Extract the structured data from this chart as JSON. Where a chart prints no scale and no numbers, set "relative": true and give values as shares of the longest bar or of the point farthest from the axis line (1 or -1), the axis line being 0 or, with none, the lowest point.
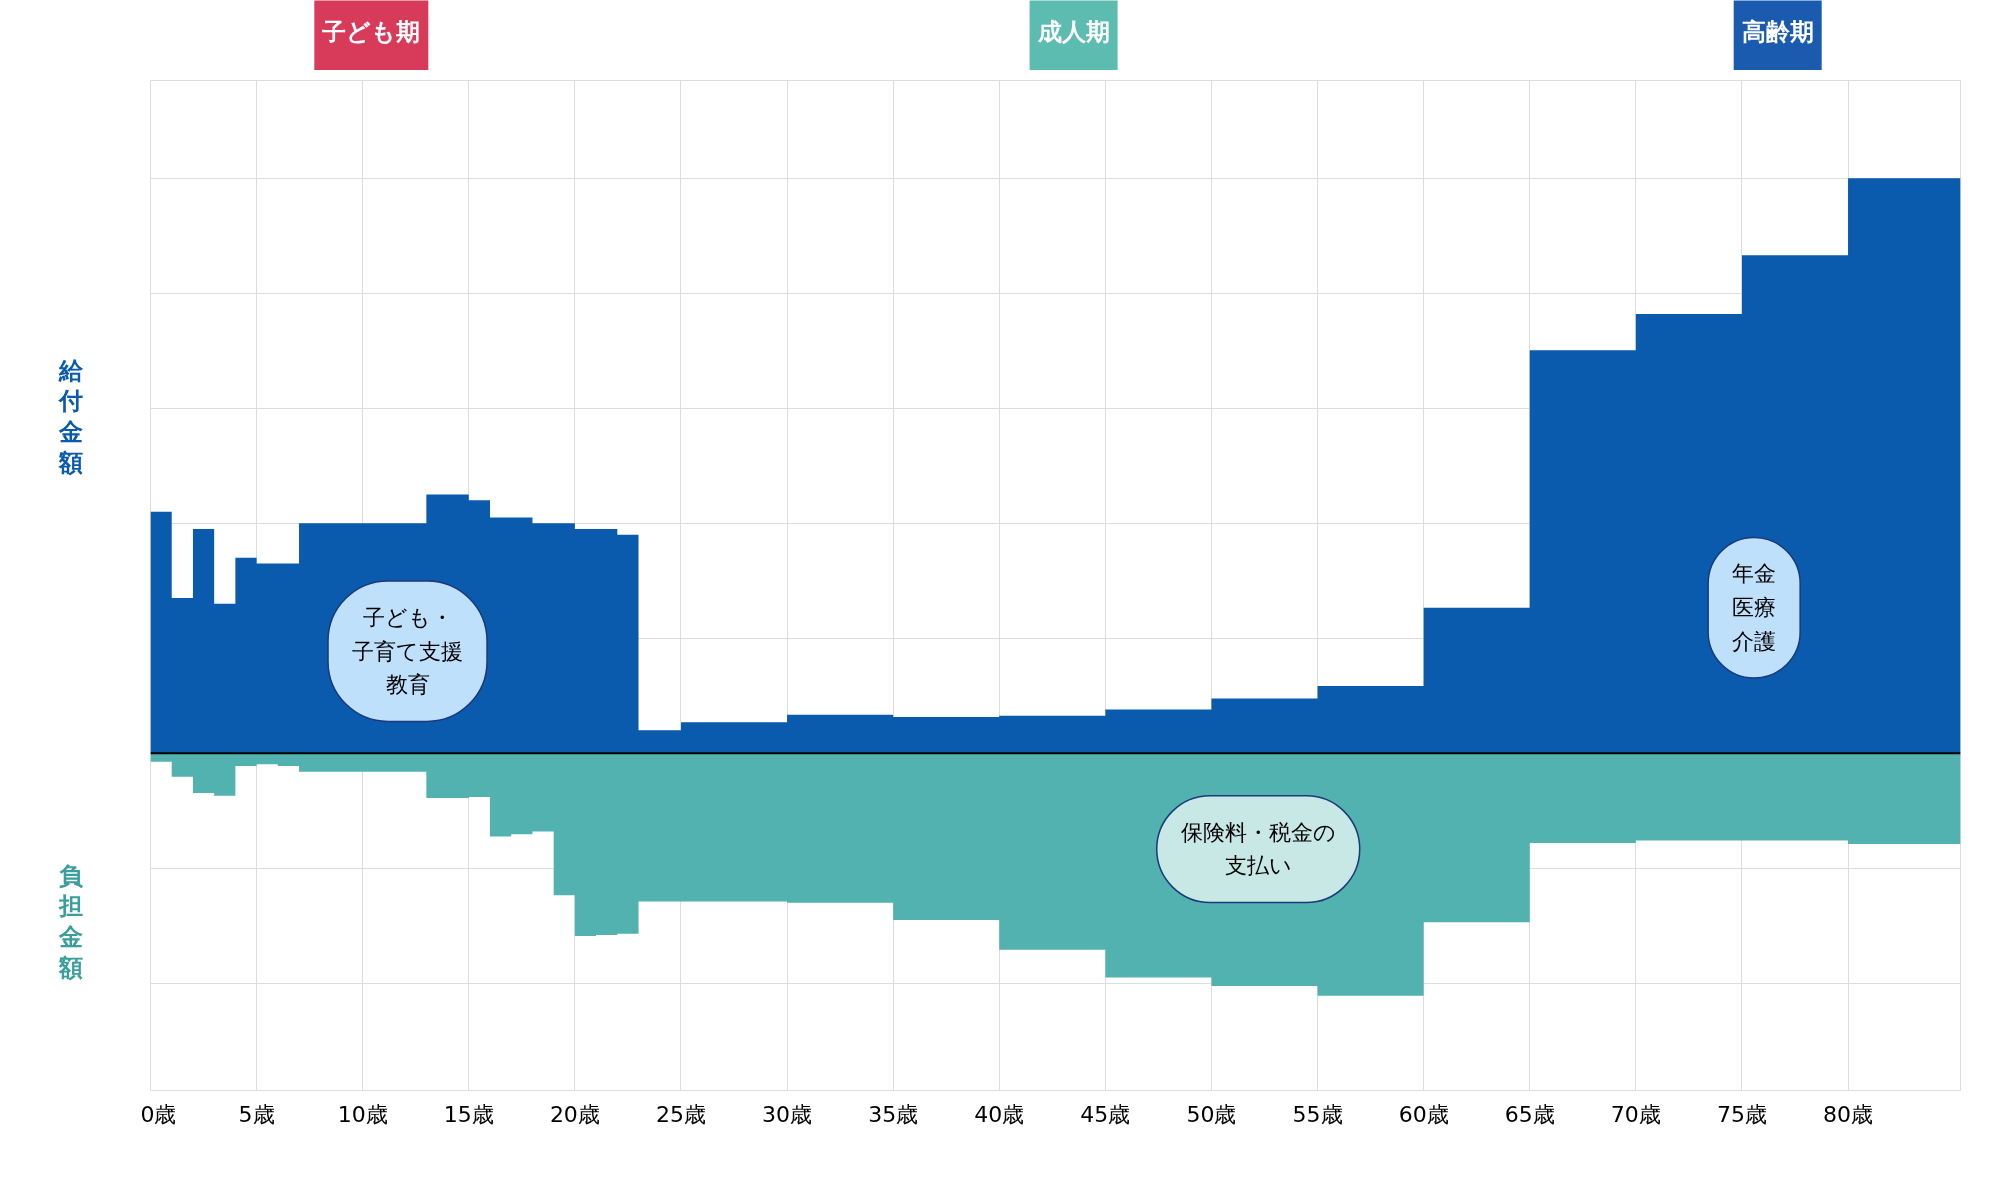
{
  "chart_data": {
    "type": "area",
    "relative": true,
    "xlim": [
      0,
      85.3
    ],
    "xticks": [
      {
        "value": 0,
        "label": "0歳"
      },
      {
        "value": 5,
        "label": "5歳"
      },
      {
        "value": 10,
        "label": "10歳"
      },
      {
        "value": 15,
        "label": "15歳"
      },
      {
        "value": 20,
        "label": "20歳"
      },
      {
        "value": 25,
        "label": "25歳"
      },
      {
        "value": 30,
        "label": "30歳"
      },
      {
        "value": 35,
        "label": "35歳"
      },
      {
        "value": 40,
        "label": "40歳"
      },
      {
        "value": 45,
        "label": "45歳"
      },
      {
        "value": 50,
        "label": "50歳"
      },
      {
        "value": 55,
        "label": "55歳"
      },
      {
        "value": 60,
        "label": "60歳"
      },
      {
        "value": 65,
        "label": "65歳"
      },
      {
        "value": 70,
        "label": "70歳"
      },
      {
        "value": 75,
        "label": "75歳"
      },
      {
        "value": 80,
        "label": "80歳"
      }
    ],
    "x": [
      0,
      1,
      2,
      3,
      4,
      5,
      6,
      7,
      8,
      9,
      10,
      11,
      12,
      13,
      14,
      15,
      16,
      17,
      18,
      19,
      20,
      21,
      22,
      23,
      25,
      30,
      35,
      40,
      45,
      50,
      55,
      60,
      65,
      70,
      75,
      80,
      85.3
    ],
    "ylabel": "給付金額",
    "grid": true,
    "series": [
      {
        "color": "#0a5aad",
        "values": [
          0.42,
          0.27,
          0.39,
          0.26,
          0.34,
          0.33,
          0.33,
          0.4,
          0.4,
          0.4,
          0.4,
          0.4,
          0.4,
          0.45,
          0.45,
          0.44,
          0.41,
          0.41,
          0.4,
          0.4,
          0.39,
          0.39,
          0.38,
          0.04,
          0.054,
          0.067,
          0.063,
          0.065,
          0.076,
          0.095,
          0.117,
          0.253,
          0.701,
          0.764,
          0.866,
          1,
          1
        ]
      },
      {
        "color": "#52b2b0",
        "values": [
          -0.015,
          -0.041,
          -0.069,
          -0.074,
          -0.022,
          -0.019,
          -0.022,
          -0.032,
          -0.032,
          -0.032,
          -0.032,
          -0.032,
          -0.032,
          -0.078,
          -0.078,
          -0.076,
          -0.145,
          -0.141,
          -0.136,
          -0.247,
          -0.318,
          -0.316,
          -0.314,
          -0.258,
          -0.258,
          -0.26,
          -0.29,
          -0.342,
          -0.39,
          -0.405,
          -0.422,
          -0.294,
          -0.156,
          -0.152,
          -0.152,
          -0.158,
          -0.158
        ]
      }
    ],
    "annotations": [
      "子ども期",
      "成人期",
      "高齢期",
      "子ども・子育て支援教育",
      "年金医療介護",
      "保険料・税金の支払い",
      "負担金額"
    ]
  }
}
